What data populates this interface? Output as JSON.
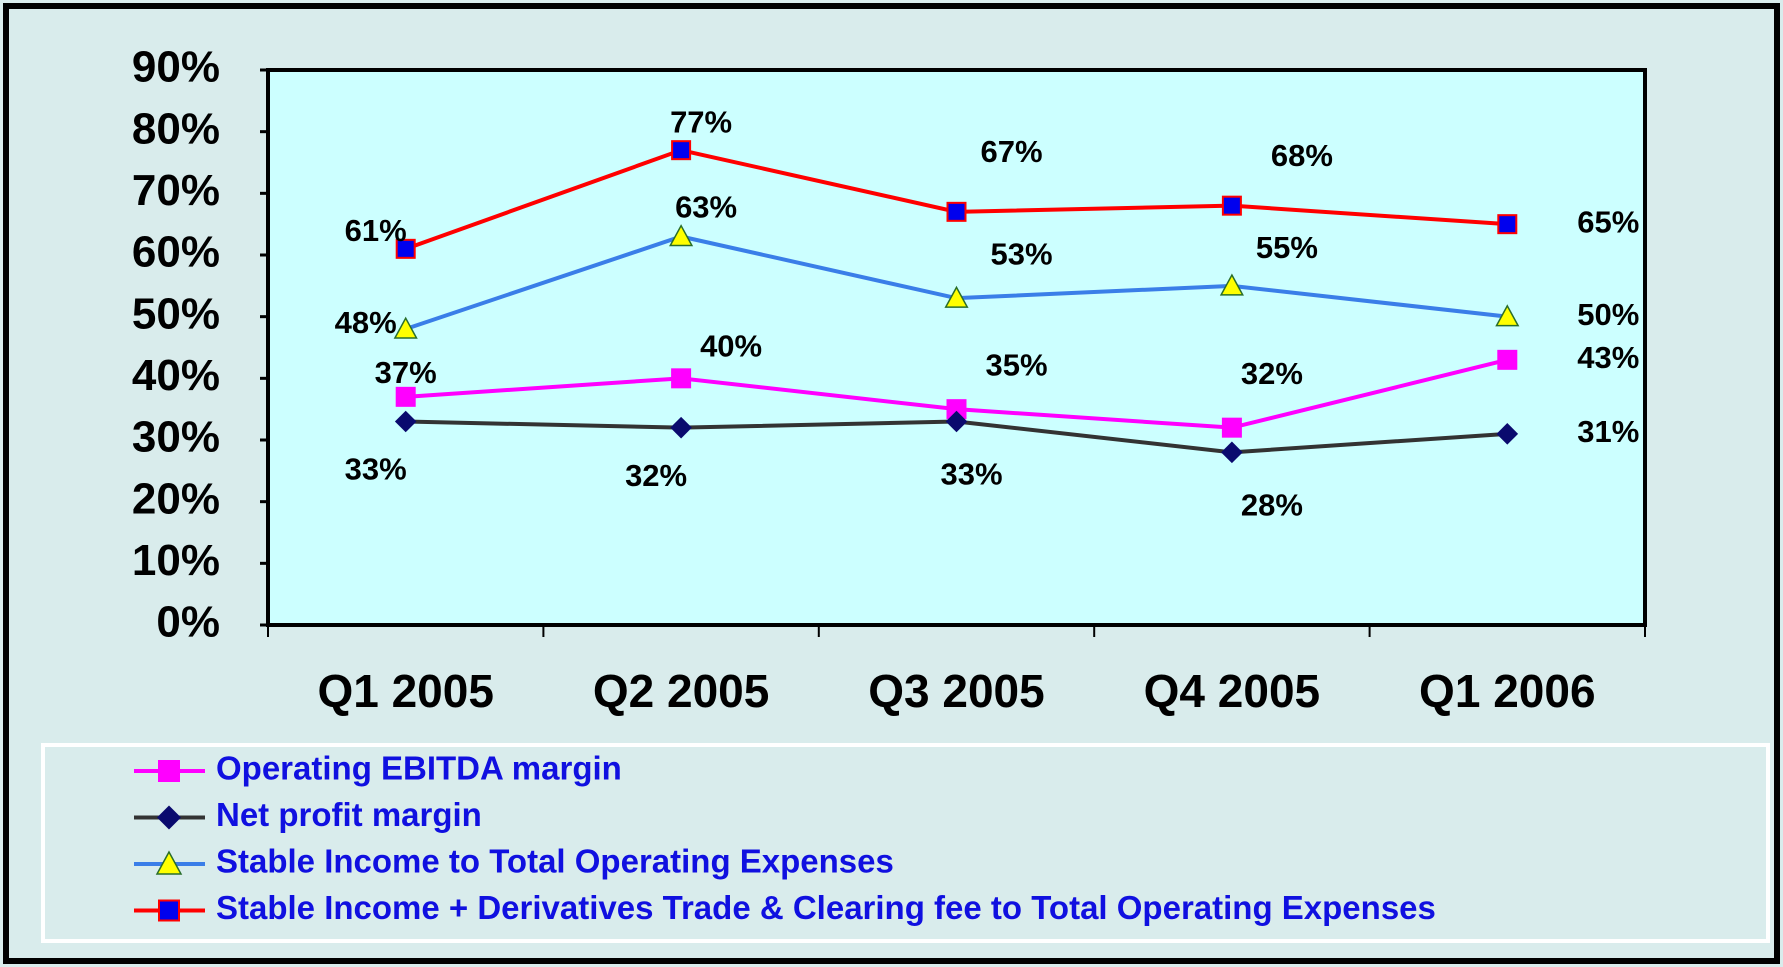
{
  "chart_data": {
    "type": "line",
    "categories": [
      "Q1 2005",
      "Q2 2005",
      "Q3 2005",
      "Q4 2005",
      "Q1 2006"
    ],
    "series": [
      {
        "name": "Operating EBITDA margin",
        "color": "#ff00ff",
        "marker": "square",
        "marker_color": "#ff00ff",
        "values": [
          37,
          40,
          35,
          32,
          43
        ],
        "value_labels": [
          "37%",
          "40%",
          "35%",
          "32%",
          "43%"
        ]
      },
      {
        "name": "Net profit margin",
        "color": "#333333",
        "marker": "diamond",
        "marker_color": "#0a0a6e",
        "values": [
          33,
          32,
          33,
          28,
          31
        ],
        "value_labels": [
          "33%",
          "32%",
          "33%",
          "28%",
          "31%"
        ]
      },
      {
        "name": "Stable Income to Total Operating Expenses",
        "color": "#3a7ee8",
        "marker": "triangle",
        "marker_color": "#ffff00",
        "values": [
          48,
          63,
          53,
          55,
          50
        ],
        "value_labels": [
          "48%",
          "63%",
          "53%",
          "55%",
          "50%"
        ]
      },
      {
        "name": "Stable Income + Derivatives Trade & Clearing fee to Total Operating Expenses",
        "color": "#ff0000",
        "marker": "square",
        "marker_color": "#0000ee",
        "values": [
          61,
          77,
          67,
          68,
          65
        ],
        "value_labels": [
          "61%",
          "77%",
          "67%",
          "68%",
          "65%"
        ]
      }
    ],
    "ylim": [
      0,
      90
    ],
    "yticks": [
      {
        "value": 0,
        "label": "0%"
      },
      {
        "value": 10,
        "label": "10%"
      },
      {
        "value": 20,
        "label": "20%"
      },
      {
        "value": 30,
        "label": "30%"
      },
      {
        "value": 40,
        "label": "40%"
      },
      {
        "value": 50,
        "label": "50%"
      },
      {
        "value": 60,
        "label": "60%"
      },
      {
        "value": 70,
        "label": "70%"
      },
      {
        "value": 80,
        "label": "80%"
      },
      {
        "value": 90,
        "label": "90%"
      }
    ],
    "legend": "bottom"
  }
}
